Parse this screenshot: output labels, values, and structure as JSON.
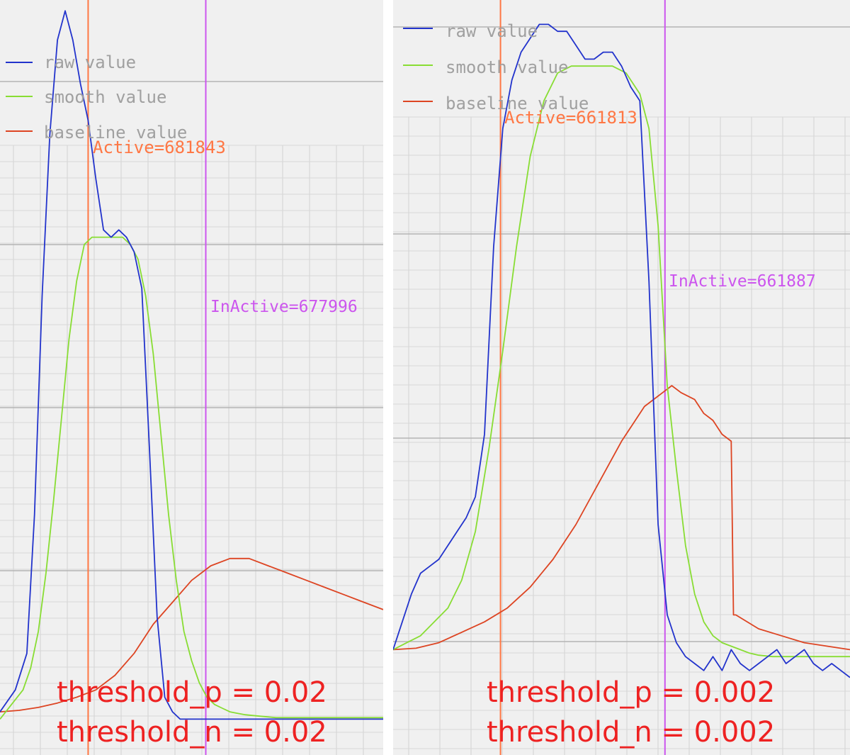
{
  "panels": [
    {
      "id": "left",
      "legend": [
        {
          "label": "raw value",
          "color": "#2233cc"
        },
        {
          "label": "smooth value",
          "color": "#88dd33"
        },
        {
          "label": "baseline value",
          "color": "#dd4422"
        }
      ],
      "active_label": "Active=681843",
      "inactive_label": "InActive=677996",
      "threshold_p": "threshold_p = 0.02",
      "threshold_n": "threshold_n = 0.02"
    },
    {
      "id": "right",
      "legend": [
        {
          "label": "raw value",
          "color": "#2233cc"
        },
        {
          "label": "smooth value",
          "color": "#88dd33"
        },
        {
          "label": "baseline value",
          "color": "#dd4422"
        }
      ],
      "active_label": "Active=661813",
      "inactive_label": "InActive=661887",
      "threshold_p": "threshold_p = 0.002",
      "threshold_n": "threshold_n = 0.002"
    }
  ],
  "colors": {
    "raw": "#2233cc",
    "smooth": "#88dd33",
    "baseline": "#dd4422",
    "active": "#ff7744",
    "inactive": "#cc55ee",
    "threshold_text": "#ee2222"
  },
  "chart_data": [
    {
      "type": "line",
      "title": "",
      "grid": true,
      "legend_position": "top-left",
      "ylim": [
        0,
        100
      ],
      "xlim": [
        0,
        100
      ],
      "markers": [
        {
          "label": "Active=681843",
          "x": 23
        },
        {
          "label": "InActive=677996",
          "x": 53.7
        }
      ],
      "series": [
        {
          "name": "raw value",
          "color": "#2233cc",
          "x": [
            0,
            4,
            7,
            9,
            11,
            13,
            15,
            17,
            19,
            21,
            23,
            25,
            27,
            29,
            31,
            33,
            35,
            37,
            39,
            41,
            43,
            45,
            47,
            48,
            50,
            52,
            53,
            54,
            55,
            57,
            59,
            62,
            65,
            70,
            75,
            80,
            85,
            90,
            95,
            100
          ],
          "y": [
            3,
            6,
            11,
            30,
            60,
            82,
            95,
            99,
            95,
            89,
            84,
            76,
            69,
            68,
            69,
            68,
            66,
            61,
            39,
            16,
            5,
            3,
            2,
            2,
            2,
            2,
            2,
            2,
            2,
            2,
            2,
            2,
            2,
            2,
            2,
            2,
            2,
            2,
            2,
            2
          ]
        },
        {
          "name": "smooth value",
          "color": "#88dd33",
          "x": [
            0,
            3,
            6,
            8,
            10,
            12,
            14,
            16,
            18,
            20,
            22,
            24,
            26,
            28,
            30,
            32,
            34,
            36,
            38,
            40,
            42,
            44,
            46,
            48,
            50,
            52,
            54,
            56,
            58,
            60,
            62,
            64,
            66,
            68,
            70,
            72,
            74,
            76,
            78,
            80,
            85,
            90,
            95,
            100
          ],
          "y": [
            2,
            4,
            6,
            9,
            14,
            22,
            32,
            43,
            54,
            62,
            67,
            68,
            68,
            68,
            68,
            68,
            67,
            65,
            60,
            52,
            41,
            30,
            21,
            14,
            10,
            7,
            5,
            4,
            3.5,
            3,
            2.8,
            2.6,
            2.5,
            2.4,
            2.3,
            2.2,
            2.2,
            2.2,
            2.2,
            2.2,
            2.2,
            2.2,
            2.2,
            2.2
          ]
        },
        {
          "name": "baseline value",
          "color": "#dd4422",
          "x": [
            0,
            5,
            10,
            15,
            20,
            25,
            30,
            35,
            40,
            45,
            50,
            55,
            60,
            65,
            70,
            75,
            80,
            85,
            90,
            95,
            100
          ],
          "y": [
            3,
            3.2,
            3.6,
            4.2,
            5,
            6,
            8,
            11,
            15,
            18,
            21,
            23,
            24,
            24,
            23,
            22,
            21,
            20,
            19,
            18,
            17
          ]
        }
      ]
    },
    {
      "type": "line",
      "title": "",
      "grid": true,
      "legend_position": "top-left",
      "ylim": [
        0,
        100
      ],
      "xlim": [
        0,
        100
      ],
      "markers": [
        {
          "label": "Active=661813",
          "x": 23.5
        },
        {
          "label": "InActive=661887",
          "x": 59.5
        }
      ],
      "series": [
        {
          "name": "raw value",
          "color": "#2233cc",
          "x": [
            0,
            2,
            4,
            6,
            8,
            10,
            12,
            14,
            16,
            18,
            20,
            22,
            24,
            26,
            28,
            30,
            32,
            34,
            36,
            38,
            40,
            42,
            44,
            46,
            48,
            50,
            52,
            54,
            56,
            58,
            60,
            62,
            64,
            66,
            68,
            70,
            72,
            74,
            76,
            78,
            80,
            82,
            84,
            86,
            88,
            90,
            92,
            94,
            96,
            98,
            100
          ],
          "y": [
            7,
            11,
            15,
            18,
            19,
            20,
            22,
            24,
            26,
            29,
            38,
            65,
            82,
            89,
            93,
            95,
            97,
            97,
            96,
            96,
            94,
            92,
            92,
            93,
            93,
            91,
            88,
            86,
            60,
            25,
            12,
            8,
            6,
            5,
            4,
            6,
            4,
            7,
            5,
            4,
            5,
            6,
            7,
            5,
            6,
            7,
            5,
            4,
            5,
            4,
            3
          ]
        },
        {
          "name": "smooth value",
          "color": "#88dd33",
          "x": [
            0,
            3,
            6,
            9,
            12,
            15,
            18,
            21,
            24,
            27,
            30,
            33,
            36,
            39,
            42,
            45,
            48,
            51,
            54,
            56,
            58,
            60,
            62,
            64,
            66,
            68,
            70,
            72,
            74,
            76,
            78,
            80,
            83,
            86,
            89,
            92,
            95,
            98,
            100
          ],
          "y": [
            7,
            8,
            9,
            11,
            13,
            17,
            24,
            36,
            50,
            65,
            78,
            86,
            90,
            91,
            91,
            91,
            91,
            90,
            87,
            82,
            68,
            45,
            33,
            22,
            15,
            11,
            9,
            8,
            7.5,
            7,
            6.5,
            6.2,
            6,
            6,
            6,
            6,
            6,
            6,
            6
          ]
        },
        {
          "name": "baseline value",
          "color": "#dd4422",
          "x": [
            0,
            5,
            10,
            15,
            20,
            25,
            30,
            35,
            40,
            45,
            50,
            55,
            57,
            59,
            61,
            63,
            66,
            68,
            70,
            72,
            74,
            74.5,
            75,
            80,
            85,
            90,
            95,
            100
          ],
          "y": [
            7,
            7.2,
            8,
            9.5,
            11,
            13,
            16,
            20,
            25,
            31,
            37,
            42,
            43,
            44,
            45,
            44,
            43,
            41,
            40,
            38,
            37,
            12,
            12,
            10,
            9,
            8,
            7.5,
            7
          ]
        }
      ]
    }
  ]
}
